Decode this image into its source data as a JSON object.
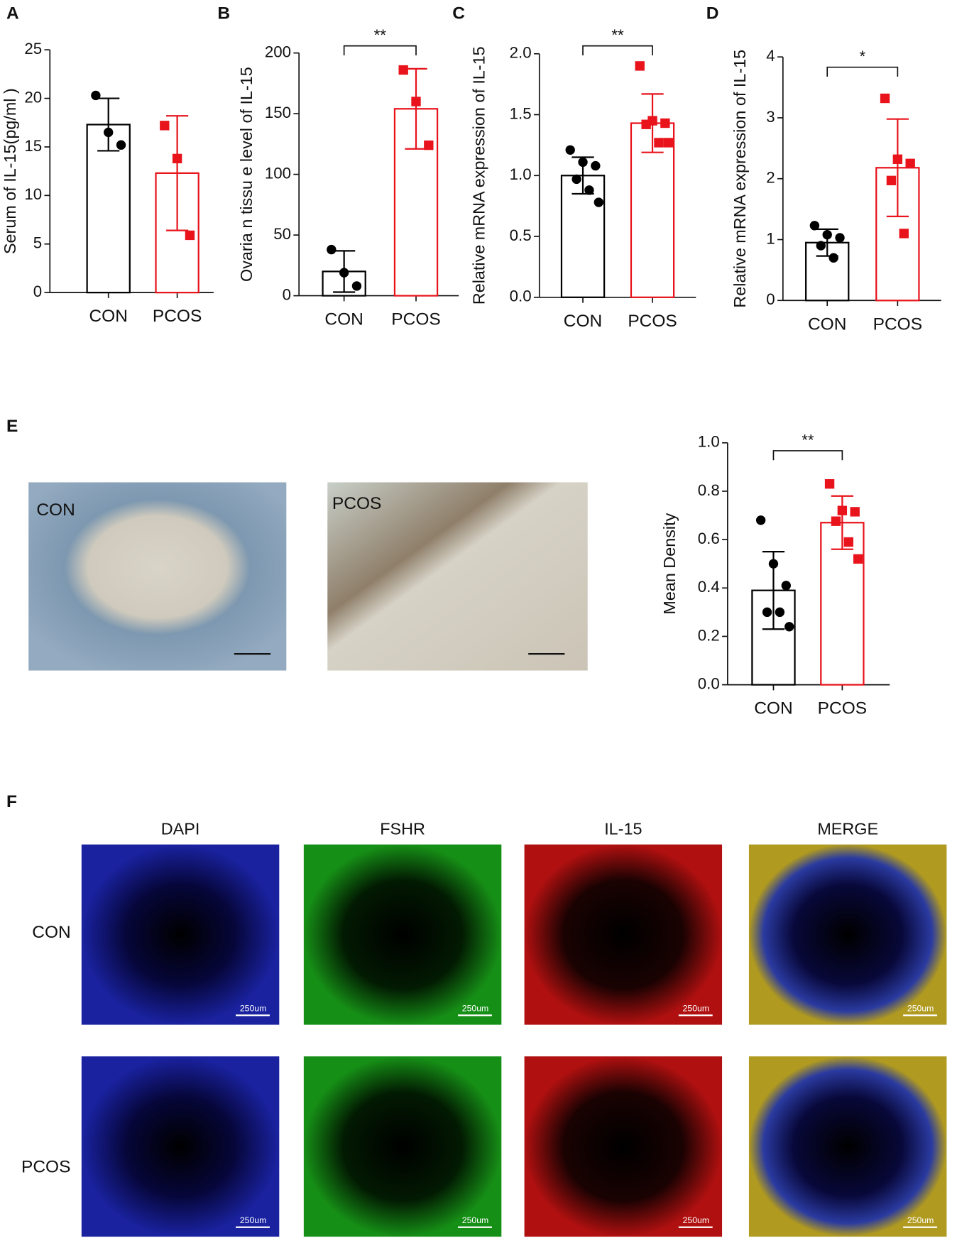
{
  "chart_data": [
    {
      "type": "bar",
      "panel": "A",
      "ylabel": "Serum of IL-15(pg/ml )",
      "categories": [
        "CON",
        "PCOS"
      ],
      "values": [
        17.3,
        12.3
      ],
      "errors": [
        2.7,
        5.9
      ],
      "points": [
        [
          20.3,
          16.5,
          15.2
        ],
        [
          17.2,
          13.8,
          5.9
        ]
      ],
      "colors": [
        "#000000",
        "#e8131b"
      ],
      "markers": [
        "circle",
        "square"
      ],
      "ylim": [
        0,
        25
      ],
      "yticks": [
        0,
        5,
        10,
        15,
        20,
        25
      ]
    },
    {
      "type": "bar",
      "panel": "B",
      "ylabel": "Ovaria n tissu e level of IL-15",
      "categories": [
        "CON",
        "PCOS"
      ],
      "values": [
        20,
        154
      ],
      "errors": [
        17,
        33
      ],
      "points": [
        [
          38,
          19,
          8
        ],
        [
          186,
          160,
          124
        ]
      ],
      "colors": [
        "#000000",
        "#e8131b"
      ],
      "markers": [
        "circle",
        "square"
      ],
      "ylim": [
        0,
        200
      ],
      "yticks": [
        0,
        50,
        100,
        150,
        200
      ],
      "annotation": "**"
    },
    {
      "type": "bar",
      "panel": "C",
      "ylabel": "Relative mRNA expression of  IL-15",
      "categories": [
        "CON",
        "PCOS"
      ],
      "values": [
        1.0,
        1.43
      ],
      "errors": [
        0.15,
        0.24
      ],
      "points": [
        [
          1.21,
          1.11,
          1.08,
          0.97,
          0.88,
          0.78
        ],
        [
          1.9,
          1.45,
          1.43,
          1.42,
          1.27,
          1.27
        ]
      ],
      "colors": [
        "#000000",
        "#e8131b"
      ],
      "markers": [
        "circle",
        "square"
      ],
      "ylim": [
        0,
        2
      ],
      "yticks": [
        {
          "value": 0,
          "label": "0.0"
        },
        {
          "value": 0.5,
          "label": "0.5"
        },
        {
          "value": 1,
          "label": "1.0"
        },
        {
          "value": 1.5,
          "label": "1.5"
        },
        {
          "value": 2,
          "label": "2.0"
        }
      ],
      "annotation": "**"
    },
    {
      "type": "bar",
      "panel": "D",
      "ylabel": "Relative mRNA expression of  IL-15",
      "categories": [
        "CON",
        "PCOS"
      ],
      "values": [
        0.95,
        2.18
      ],
      "errors": [
        0.22,
        0.8
      ],
      "points": [
        [
          1.23,
          1.08,
          1.03,
          0.9,
          0.7
        ],
        [
          3.32,
          2.32,
          2.25,
          1.97,
          1.1
        ]
      ],
      "colors": [
        "#000000",
        "#e8131b"
      ],
      "markers": [
        "circle",
        "square"
      ],
      "ylim": [
        0,
        4
      ],
      "yticks": [
        0,
        1,
        2,
        3,
        4
      ],
      "annotation": "*"
    },
    {
      "type": "bar",
      "panel": "E",
      "ylabel": "Mean Density",
      "categories": [
        "CON",
        "PCOS"
      ],
      "values": [
        0.39,
        0.67
      ],
      "errors": [
        0.16,
        0.11
      ],
      "points": [
        [
          0.68,
          0.5,
          0.41,
          0.3,
          0.3,
          0.24
        ],
        [
          0.83,
          0.72,
          0.715,
          0.676,
          0.59,
          0.52
        ]
      ],
      "colors": [
        "#000000",
        "#e8131b"
      ],
      "markers": [
        "circle",
        "square"
      ],
      "ylim": [
        0,
        1
      ],
      "yticks": [
        {
          "value": 0,
          "label": "0.0"
        },
        {
          "value": 0.2,
          "label": "0.2"
        },
        {
          "value": 0.4,
          "label": "0.4"
        },
        {
          "value": 0.6,
          "label": "0.6"
        },
        {
          "value": 0.8,
          "label": "0.8"
        },
        {
          "value": 1,
          "label": "1.0"
        }
      ],
      "annotation": "**"
    }
  ],
  "images_e": [
    "CON",
    "PCOS"
  ],
  "panel_f": {
    "panel": "F",
    "columns": [
      "DAPI",
      "FSHR",
      "IL-15",
      "MERGE"
    ],
    "rows": [
      "CON",
      "PCOS"
    ],
    "scale_bar": "250um"
  }
}
